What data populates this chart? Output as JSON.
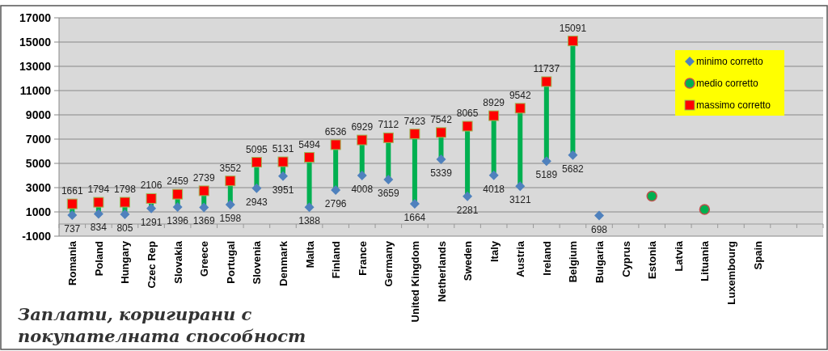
{
  "chart_data": {
    "type": "scatter",
    "title": "Заплати, коригирани с покупателната способност",
    "categories": [
      "Romania",
      "Poland",
      "Hungary",
      "Czec Rep",
      "Slovakia",
      "Greece",
      "Portugal",
      "Slovenia",
      "Denmark",
      "Malta",
      "Finland",
      "France",
      "Germany",
      "United Kingdom",
      "Netherlands",
      "Sweden",
      "Italy",
      "Austria",
      "Ireland",
      "Belgium",
      "Bulgaria",
      "Cyprus",
      "Estonia",
      "Latvia",
      "Lituania",
      "Luxembourg",
      "Spain",
      null,
      null
    ],
    "series": [
      {
        "name": "minimo corretto",
        "color": "#4f81bd",
        "marker": "diamond",
        "values": [
          737,
          834,
          805,
          1291,
          1396,
          1369,
          1598,
          2943,
          3951,
          1388,
          2796,
          4008,
          3659,
          1664,
          5339,
          2281,
          4018,
          3121,
          5189,
          5682,
          698,
          null,
          null,
          null,
          null,
          null,
          null,
          null,
          null
        ],
        "value_labels": [
          "737",
          "834",
          "805",
          "1291",
          "1396",
          "1369",
          "1598",
          "2943",
          "3951",
          "1388",
          "2796",
          "4008",
          "3659",
          "1664",
          "5339",
          "2281",
          "4018",
          "3121",
          "5189",
          "5682",
          "698",
          null,
          null,
          null,
          null,
          null,
          null,
          null,
          null
        ]
      },
      {
        "name": "medio corretto",
        "color": "#00b050",
        "marker": "circle",
        "values": [
          null,
          null,
          null,
          null,
          null,
          null,
          null,
          null,
          null,
          null,
          null,
          null,
          null,
          null,
          null,
          null,
          null,
          null,
          null,
          null,
          null,
          null,
          2300,
          null,
          1200,
          null,
          null,
          null,
          null
        ]
      },
      {
        "name": "massimo corretto",
        "color": "#ff0000",
        "marker": "square",
        "values": [
          1661,
          1794,
          1798,
          2106,
          2459,
          2739,
          3552,
          5095,
          5131,
          5494,
          6536,
          6929,
          7112,
          7423,
          7542,
          8065,
          8929,
          9542,
          11737,
          15091,
          null,
          null,
          null,
          null,
          null,
          null,
          null,
          null,
          null
        ],
        "value_labels": [
          "1661",
          "1794",
          "1798",
          "2106",
          "2459",
          "2739",
          "3552",
          "5095",
          "5131",
          "5494",
          "6536",
          "6929",
          "7112",
          "7423",
          "7542",
          "8065",
          "8929",
          "9542",
          "11737",
          "15091",
          null,
          null,
          null,
          null,
          null,
          null,
          null,
          null,
          null
        ]
      }
    ],
    "ylim": [
      -1000,
      17000
    ],
    "yticks": [
      -1000,
      1000,
      3000,
      5000,
      7000,
      9000,
      11000,
      13000,
      15000,
      17000
    ],
    "grid": "y",
    "legend": "top right"
  }
}
